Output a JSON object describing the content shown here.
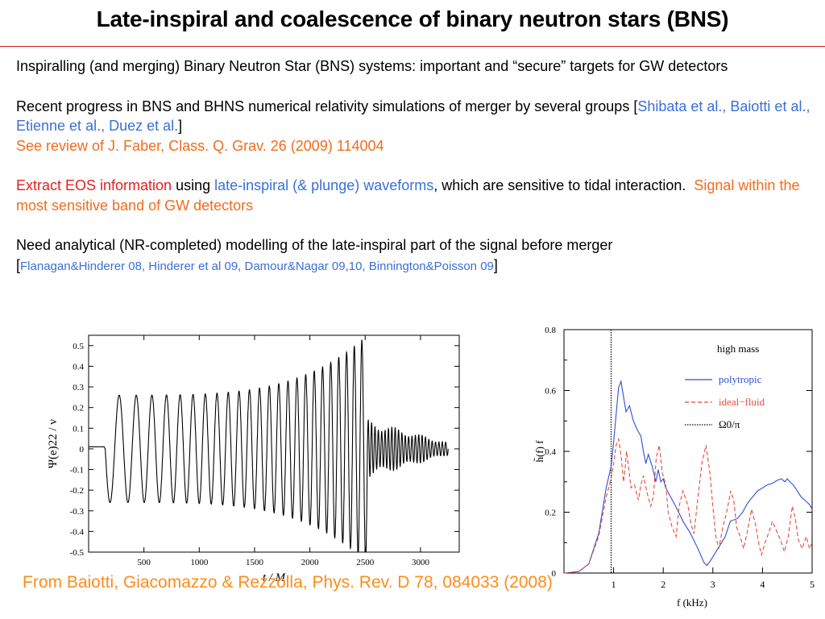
{
  "slide": {
    "title": "Late-inspiral and coalescence of binary neutron stars (BNS)",
    "colors": {
      "black": "#000000",
      "blue": "#3a6fd8",
      "orange": "#f36b1c",
      "red": "#e41f1f",
      "caption": "#ff8c1a",
      "rule": "#d02020"
    },
    "paragraphs": [
      {
        "name": "para-intro",
        "spans": [
          {
            "text": "Inspiralling (and merging) Binary Neutron Star (BNS) systems: important and “secure” targets for GW detectors",
            "color": "black"
          }
        ]
      },
      {
        "name": "para-progress",
        "spans": [
          {
            "text": "Recent progress in BNS and BHNS numerical relativity simulations of merger by several groups [",
            "color": "black"
          },
          {
            "text": "Shibata et al., Baiotti et al., Etienne et al., Duez et al.",
            "color": "blue"
          },
          {
            "text": "]",
            "color": "black",
            "br": true
          },
          {
            "text": "See review of J. Faber, Class. Q. Grav. 26 (2009) 114004",
            "color": "orange"
          }
        ]
      },
      {
        "name": "para-eos",
        "spans": [
          {
            "text": "Extract EOS information",
            "color": "red"
          },
          {
            "text": " using ",
            "color": "black"
          },
          {
            "text": "late-inspiral (& plunge) waveforms",
            "color": "blue"
          },
          {
            "text": ", which are sensitive to tidal interaction.  ",
            "color": "black"
          },
          {
            "text": "Signal within the most sensitive band of GW detectors",
            "color": "orange"
          }
        ]
      },
      {
        "name": "para-modelling",
        "spans": [
          {
            "text": "Need analytical (NR-completed) modelling of the late-inspiral part of the signal before merger",
            "color": "black",
            "br": true
          },
          {
            "text": "[",
            "color": "black"
          },
          {
            "text": "Flanagan&Hinderer 08, Hinderer et al 09, Damour&Nagar 09,10, Binnington&Poisson 09",
            "color": "blue",
            "small": true
          },
          {
            "text": "]",
            "color": "black"
          }
        ]
      }
    ],
    "caption": "From Baiotti, Giacomazzo & Rezzolla, Phys. Rev. D 78, 084033 (2008)"
  },
  "chart_data": [
    {
      "name": "waveform",
      "type": "line",
      "title": "",
      "xlabel": "t / M",
      "ylabel": "Ψ(e)22 / ν",
      "xlim": [
        0,
        3350
      ],
      "ylim": [
        -0.5,
        0.55
      ],
      "xticks": [
        500,
        1000,
        1500,
        2000,
        2500,
        3000
      ],
      "yticks": [
        -0.5,
        -0.4,
        -0.3,
        -0.2,
        -0.1,
        0,
        0.1,
        0.2,
        0.3,
        0.4,
        0.5
      ],
      "grid": false,
      "series": [
        {
          "segments": [
            {
              "kind": "flat",
              "x": [
                0,
                140
              ],
              "y": 0.01
            },
            {
              "kind": "chirp",
              "x": [
                150,
                2520
              ],
              "cycles": 24.5,
              "amp_start": 0.26,
              "amp_end": 0.55
            },
            {
              "kind": "ringdown",
              "x": [
                2520,
                3250
              ],
              "cycles": 24,
              "amp_start": 0.14,
              "amp_end": 0.03
            }
          ]
        }
      ]
    },
    {
      "name": "spectrum",
      "type": "line",
      "title": "",
      "xlabel": "f (kHz)",
      "ylabel": "h̃(f) f",
      "xlim": [
        0,
        5
      ],
      "ylim": [
        0,
        0.8
      ],
      "xticks": [
        1,
        2,
        3,
        4,
        5
      ],
      "yticks": [
        0,
        0.2,
        0.4,
        0.6,
        0.8
      ],
      "grid": false,
      "legend": {
        "position": "top-right",
        "header": "high mass"
      },
      "vline": {
        "x": 0.95,
        "label": "Ω0/π",
        "color": "#000000"
      },
      "series": [
        {
          "name": "polytropic",
          "color": "#2d4fd6",
          "dash": "",
          "points": [
            [
              0,
              0
            ],
            [
              0.3,
              0.005
            ],
            [
              0.5,
              0.03
            ],
            [
              0.7,
              0.13
            ],
            [
              0.85,
              0.28
            ],
            [
              0.95,
              0.35
            ],
            [
              1.0,
              0.43
            ],
            [
              1.05,
              0.52
            ],
            [
              1.1,
              0.61
            ],
            [
              1.15,
              0.63
            ],
            [
              1.2,
              0.58
            ],
            [
              1.25,
              0.53
            ],
            [
              1.32,
              0.55
            ],
            [
              1.4,
              0.5
            ],
            [
              1.48,
              0.47
            ],
            [
              1.55,
              0.45
            ],
            [
              1.6,
              0.4
            ],
            [
              1.65,
              0.36
            ],
            [
              1.7,
              0.39
            ],
            [
              1.78,
              0.35
            ],
            [
              1.85,
              0.3
            ],
            [
              1.9,
              0.34
            ],
            [
              1.95,
              0.3
            ],
            [
              2.0,
              0.31
            ],
            [
              2.05,
              0.28
            ],
            [
              2.15,
              0.25
            ],
            [
              2.25,
              0.22
            ],
            [
              2.4,
              0.17
            ],
            [
              2.55,
              0.13
            ],
            [
              2.7,
              0.08
            ],
            [
              2.82,
              0.035
            ],
            [
              2.88,
              0.025
            ],
            [
              2.95,
              0.04
            ],
            [
              3.1,
              0.08
            ],
            [
              3.25,
              0.12
            ],
            [
              3.35,
              0.17
            ],
            [
              3.5,
              0.18
            ],
            [
              3.6,
              0.2
            ],
            [
              3.7,
              0.23
            ],
            [
              3.8,
              0.25
            ],
            [
              3.9,
              0.27
            ],
            [
              4.0,
              0.28
            ],
            [
              4.1,
              0.29
            ],
            [
              4.2,
              0.295
            ],
            [
              4.3,
              0.305
            ],
            [
              4.38,
              0.31
            ],
            [
              4.45,
              0.3
            ],
            [
              4.5,
              0.31
            ],
            [
              4.55,
              0.3
            ],
            [
              4.62,
              0.29
            ],
            [
              4.7,
              0.27
            ],
            [
              4.78,
              0.25
            ],
            [
              4.85,
              0.24
            ],
            [
              4.95,
              0.225
            ],
            [
              5.0,
              0.21
            ]
          ]
        },
        {
          "name": "ideal−fluid",
          "color": "#e8493c",
          "dash": "5 3",
          "points": [
            [
              0,
              0
            ],
            [
              0.3,
              0.005
            ],
            [
              0.5,
              0.03
            ],
            [
              0.7,
              0.12
            ],
            [
              0.85,
              0.25
            ],
            [
              0.95,
              0.31
            ],
            [
              1.0,
              0.36
            ],
            [
              1.05,
              0.42
            ],
            [
              1.1,
              0.44
            ],
            [
              1.13,
              0.41
            ],
            [
              1.16,
              0.37
            ],
            [
              1.2,
              0.3
            ],
            [
              1.23,
              0.34
            ],
            [
              1.26,
              0.4
            ],
            [
              1.3,
              0.35
            ],
            [
              1.35,
              0.28
            ],
            [
              1.42,
              0.29
            ],
            [
              1.5,
              0.24
            ],
            [
              1.55,
              0.29
            ],
            [
              1.6,
              0.32
            ],
            [
              1.68,
              0.26
            ],
            [
              1.75,
              0.22
            ],
            [
              1.8,
              0.25
            ],
            [
              1.86,
              0.38
            ],
            [
              1.92,
              0.42
            ],
            [
              1.98,
              0.33
            ],
            [
              2.05,
              0.29
            ],
            [
              2.1,
              0.2
            ],
            [
              2.18,
              0.15
            ],
            [
              2.26,
              0.12
            ],
            [
              2.32,
              0.22
            ],
            [
              2.4,
              0.27
            ],
            [
              2.5,
              0.22
            ],
            [
              2.56,
              0.16
            ],
            [
              2.62,
              0.13
            ],
            [
              2.7,
              0.25
            ],
            [
              2.78,
              0.36
            ],
            [
              2.86,
              0.42
            ],
            [
              2.94,
              0.33
            ],
            [
              3.0,
              0.22
            ],
            [
              3.06,
              0.12
            ],
            [
              3.12,
              0.08
            ],
            [
              3.2,
              0.15
            ],
            [
              3.28,
              0.2
            ],
            [
              3.36,
              0.27
            ],
            [
              3.42,
              0.24
            ],
            [
              3.48,
              0.15
            ],
            [
              3.55,
              0.12
            ],
            [
              3.62,
              0.08
            ],
            [
              3.7,
              0.14
            ],
            [
              3.78,
              0.21
            ],
            [
              3.86,
              0.16
            ],
            [
              3.92,
              0.1
            ],
            [
              3.98,
              0.06
            ],
            [
              4.05,
              0.1
            ],
            [
              4.12,
              0.13
            ],
            [
              4.2,
              0.17
            ],
            [
              4.28,
              0.14
            ],
            [
              4.36,
              0.11
            ],
            [
              4.44,
              0.07
            ],
            [
              4.52,
              0.12
            ],
            [
              4.6,
              0.22
            ],
            [
              4.66,
              0.18
            ],
            [
              4.72,
              0.11
            ],
            [
              4.8,
              0.08
            ],
            [
              4.88,
              0.12
            ],
            [
              4.95,
              0.08
            ],
            [
              5.0,
              0.1
            ]
          ]
        }
      ]
    }
  ]
}
